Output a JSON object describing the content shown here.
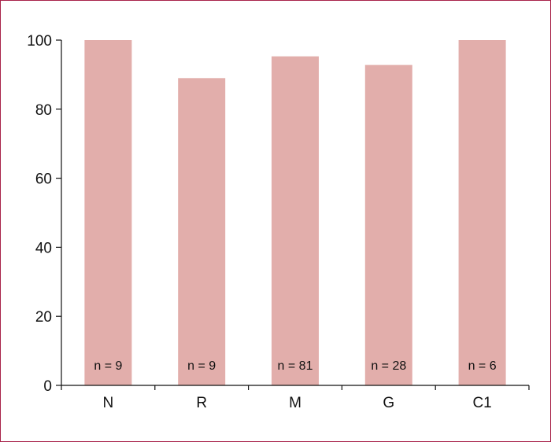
{
  "chart_data": {
    "type": "bar",
    "categories": [
      "N",
      "R",
      "M",
      "G",
      "C1"
    ],
    "values": [
      100,
      89,
      95.3,
      92.8,
      100
    ],
    "annotations": [
      "n = 9",
      "n = 9",
      "n = 81",
      "n = 28",
      "n = 6"
    ],
    "ylim": [
      0,
      100
    ],
    "yticks": [
      0,
      20,
      40,
      60,
      80,
      100
    ],
    "grid": false,
    "bar_color": "#e2aeab",
    "border_color": "#a8234a"
  }
}
